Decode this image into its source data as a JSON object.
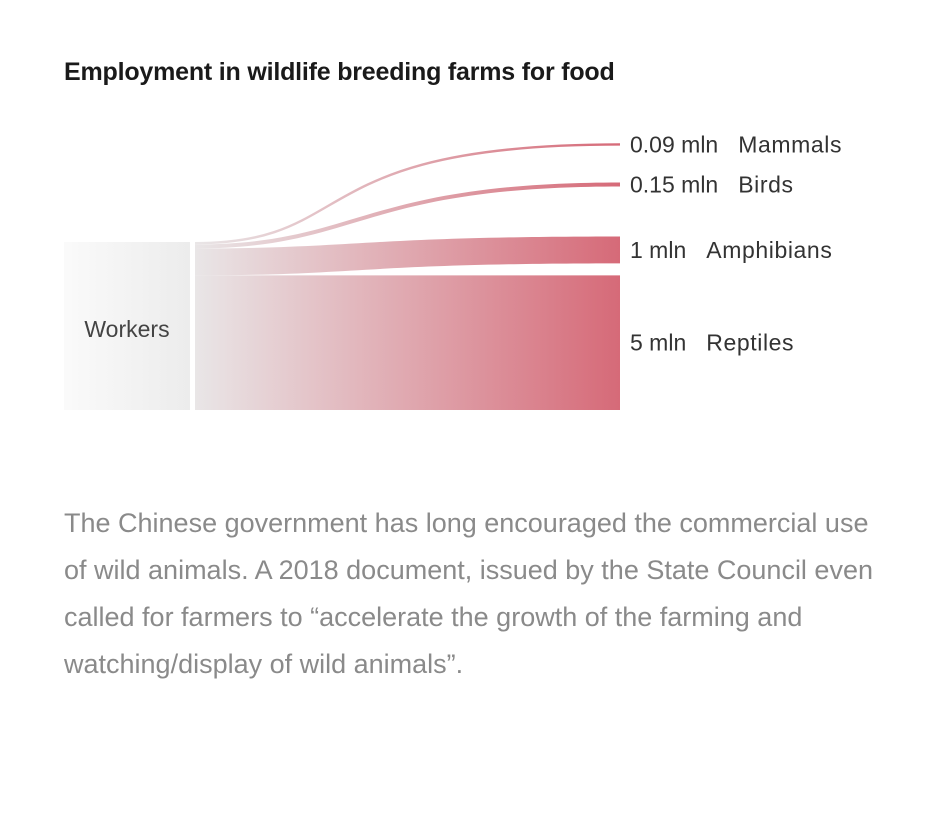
{
  "chart_data": {
    "type": "sankey",
    "title": "Employment in wildlife breeding farms for food",
    "source": {
      "label": "Workers"
    },
    "unit": "mln",
    "flows": [
      {
        "name": "Mammals",
        "value": 0.09,
        "value_label": "0.09 mln"
      },
      {
        "name": "Birds",
        "value": 0.15,
        "value_label": "0.15 mln"
      },
      {
        "name": "Amphibians",
        "value": 1,
        "value_label": "1 mln"
      },
      {
        "name": "Reptiles",
        "value": 5,
        "value_label": "5 mln"
      }
    ],
    "colors": {
      "flow_start": "#e9e6e7",
      "flow_end": "#d66a78",
      "source_bar": "#ececec"
    }
  },
  "caption": "The Chinese government has long encouraged the commercial use of wild animals. A 2018 document, issued by the State Council even called for farmers to “accelerate the growth of the farming and watching/display of wild animals”."
}
